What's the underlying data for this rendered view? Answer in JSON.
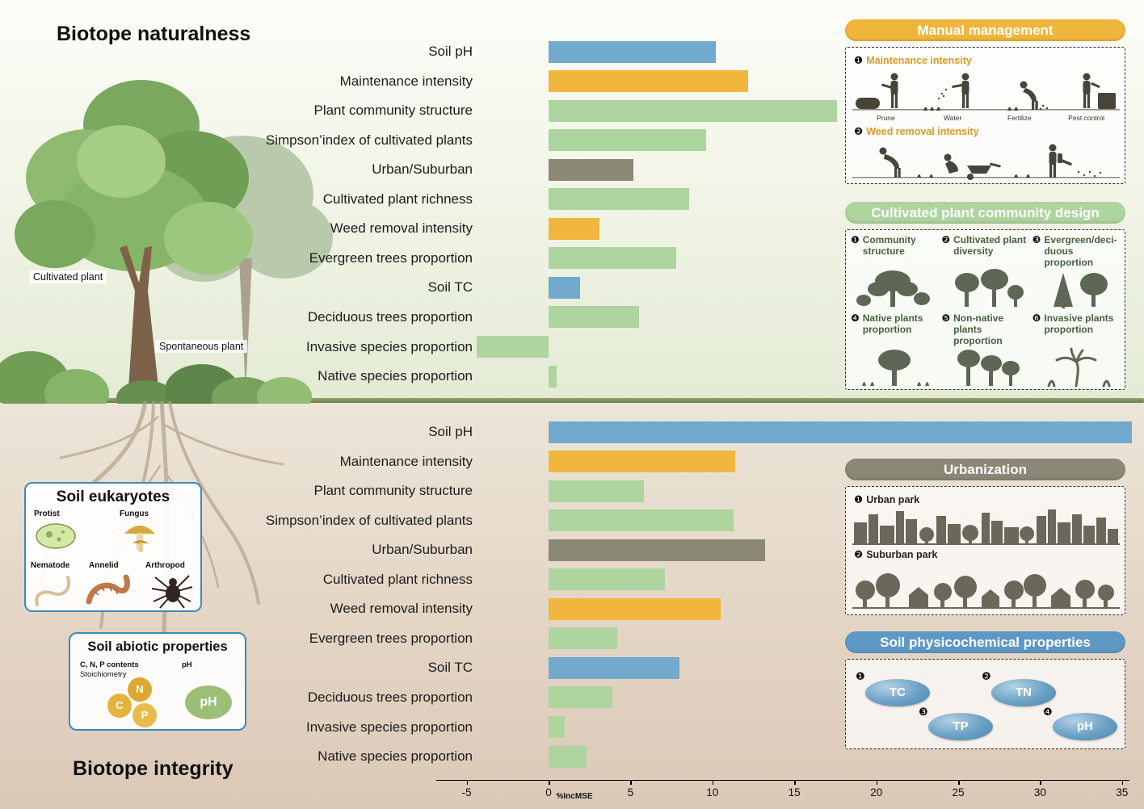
{
  "page": {
    "title_top": "Biotope naturalness",
    "title_bottom": "Biotope integrity"
  },
  "illustration": {
    "cultivated_label": "Cultivated plant",
    "spontaneous_label": "Spontaneous plant"
  },
  "colors": {
    "blue": "#72a9cf",
    "yellow": "#f1b63e",
    "green": "#aed4a0",
    "gray": "#8c8878",
    "header_manual": "#f0b63c",
    "header_design": "#aed4a0",
    "header_urban": "#8c8878",
    "header_soil": "#5d99c4"
  },
  "chart_axis": {
    "ticks": [
      -5,
      0,
      5,
      10,
      15,
      20,
      25,
      30,
      35
    ],
    "xlabel": "%IncMSE"
  },
  "chart_data": [
    {
      "type": "bar",
      "orientation": "horizontal",
      "title": "Biotope naturalness",
      "xlabel": "%IncMSE",
      "xlim": [
        -5,
        35
      ],
      "categories": [
        "Soil pH",
        "Maintenance intensity",
        "Plant community structure",
        "Simpson’index of cultivated plants",
        "Urban/Suburban",
        "Cultivated plant richness",
        "Weed removal intensity",
        "Evergreen trees proportion",
        "Soil TC",
        "Deciduous trees proportion",
        "Invasive species proportion",
        "Native species proportion"
      ],
      "values": [
        10.2,
        12.2,
        17.6,
        9.6,
        5.2,
        8.6,
        3.1,
        7.8,
        1.9,
        5.5,
        -4.4,
        0.5
      ],
      "bar_color_keys": [
        "blue",
        "yellow",
        "green",
        "green",
        "gray",
        "green",
        "yellow",
        "green",
        "blue",
        "green",
        "green",
        "green"
      ]
    },
    {
      "type": "bar",
      "orientation": "horizontal",
      "title": "Biotope integrity",
      "xlabel": "%IncMSE",
      "xlim": [
        -5,
        35
      ],
      "categories": [
        "Soil pH",
        "Maintenance intensity",
        "Plant community structure",
        "Simpson’index of cultivated plants",
        "Urban/Suburban",
        "Cultivated plant richness",
        "Weed removal intensity",
        "Evergreen trees proportion",
        "Soil TC",
        "Deciduous trees proportion",
        "Invasive species proportion",
        "Native species proportion"
      ],
      "values": [
        35.6,
        11.4,
        5.8,
        11.3,
        13.2,
        7.1,
        10.5,
        4.2,
        8.0,
        3.9,
        1.0,
        2.3
      ],
      "bar_color_keys": [
        "blue",
        "yellow",
        "green",
        "green",
        "gray",
        "green",
        "yellow",
        "green",
        "blue",
        "green",
        "green",
        "green"
      ]
    }
  ],
  "legend_panels": {
    "manual": {
      "title": "Manual management",
      "items": [
        {
          "num": "❶",
          "label": "Maintenance intensity",
          "captions": [
            "Prune",
            "Water",
            "Fertilize",
            "Pest control"
          ]
        },
        {
          "num": "❷",
          "label": "Weed removal intensity"
        }
      ]
    },
    "design": {
      "title": "Cultivated plant community design",
      "items": [
        {
          "num": "❶",
          "label": "Community structure"
        },
        {
          "num": "❷",
          "label": "Cultivated plant diversity"
        },
        {
          "num": "❸",
          "label": "Evergreen/deci-duous proportion"
        },
        {
          "num": "❹",
          "label": "Native plants proportion"
        },
        {
          "num": "❺",
          "label": "Non-native plants proportion"
        },
        {
          "num": "❻",
          "label": "Invasive plants proportion"
        }
      ]
    },
    "urbanization": {
      "title": "Urbanization",
      "items": [
        {
          "num": "❶",
          "label": "Urban park"
        },
        {
          "num": "❷",
          "label": "Suburban park"
        }
      ]
    },
    "soil": {
      "title": "Soil physicochemical properties",
      "items": [
        {
          "num": "❶",
          "label": "TC"
        },
        {
          "num": "❷",
          "label": "TN"
        },
        {
          "num": "❸",
          "label": "TP"
        },
        {
          "num": "❹",
          "label": "pH"
        }
      ]
    }
  },
  "soil_eukaryotes": {
    "title": "Soil eukaryotes",
    "labels": [
      "Protist",
      "Fungus",
      "Nematode",
      "Annelid",
      "Arthropod"
    ]
  },
  "soil_abiotic": {
    "title": "Soil abiotic properties",
    "line1": "C, N, P contents",
    "line2": "Stoichiometry",
    "ph_small": "pH",
    "c": "C",
    "n": "N",
    "p": "P",
    "ph": "pH"
  }
}
